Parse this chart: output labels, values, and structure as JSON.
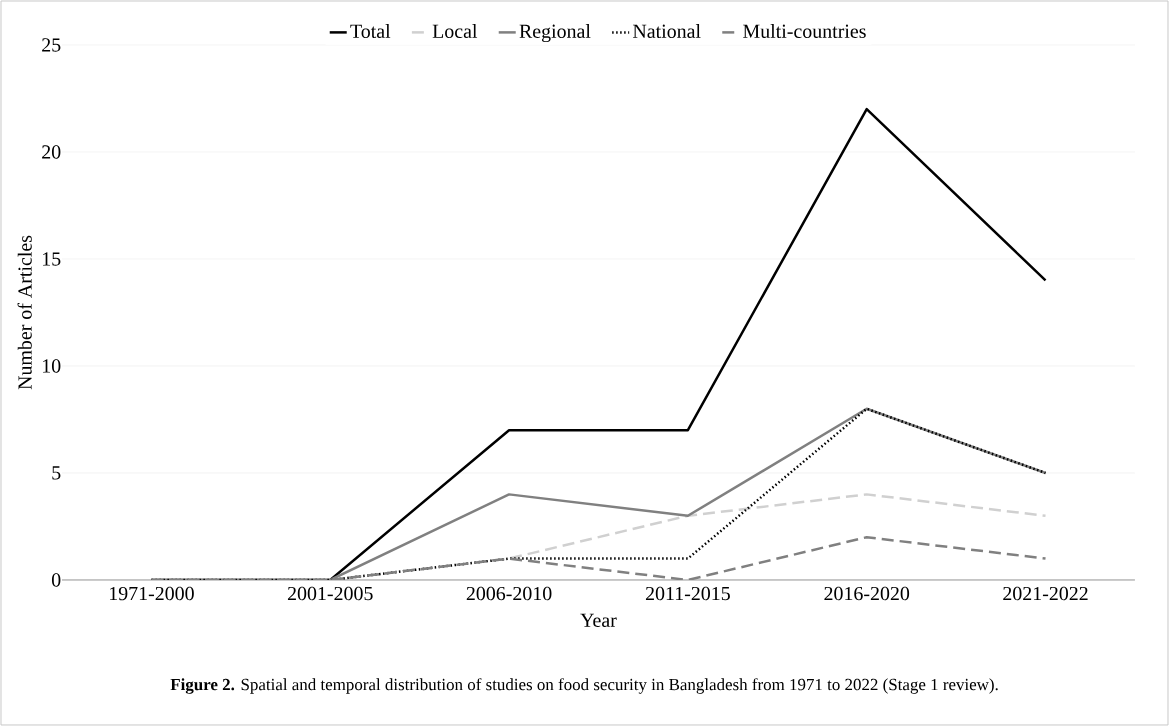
{
  "chart_data": {
    "type": "line",
    "xlabel": "Year",
    "ylabel": "Number of Articles",
    "categories": [
      "1971-2000",
      "2001-2005",
      "2006-2010",
      "2011-2015",
      "2016-2020",
      "2021-2022"
    ],
    "series": [
      {
        "name": "Total",
        "color": "#000000",
        "values": [
          0,
          0,
          7,
          7,
          22,
          14
        ],
        "line_style": "solid"
      },
      {
        "name": "Local",
        "color": "#d0d0d0",
        "values": [
          0,
          0,
          1,
          3,
          4,
          3
        ],
        "line_style": "dashed"
      },
      {
        "name": "Regional",
        "color": "#808080",
        "values": [
          0,
          0,
          4,
          3,
          8,
          5
        ],
        "line_style": "solid"
      },
      {
        "name": "National",
        "color": "#000000",
        "values": [
          0,
          0,
          1,
          1,
          8,
          5
        ],
        "line_style": "dotted"
      },
      {
        "name": "Multi-countries",
        "color": "#808080",
        "values": [
          0,
          0,
          1,
          0,
          2,
          1
        ],
        "line_style": "dashed"
      }
    ],
    "ylim": [
      0,
      25
    ],
    "yticks": [
      0,
      5,
      10,
      15,
      20,
      25
    ],
    "grid": "y",
    "legend": "top",
    "marker": "none",
    "annotations": [
      "**Figure 2.** Spatial and temporal distribution of studies on food security in Bangladesh from 1971 to 2022 (Stage 1 review)."
    ]
  }
}
